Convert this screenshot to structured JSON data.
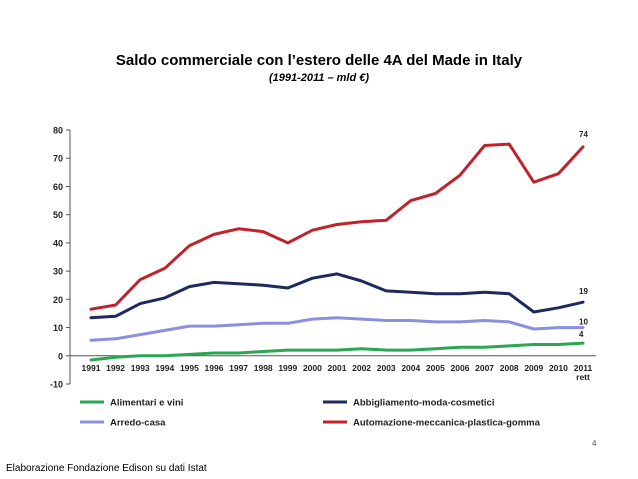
{
  "slide": {
    "title": "Saldo commerciale con l’estero delle 4A del Made in Italy",
    "subtitle": "(1991-2011 – mld €)",
    "source": "Elaborazione Fondazione Edison su dati Istat",
    "page_number": "4"
  },
  "chart_data": {
    "type": "line",
    "title": "",
    "xlabel": "",
    "ylabel": "",
    "ylim": [
      -10,
      80
    ],
    "yticks": [
      -10,
      0,
      10,
      20,
      30,
      40,
      50,
      60,
      70,
      80
    ],
    "grid": false,
    "legend": "bottom",
    "x": [
      "1991",
      "1992",
      "1993",
      "1994",
      "1995",
      "1996",
      "1997",
      "1998",
      "1999",
      "2000",
      "2001",
      "2002",
      "2003",
      "2004",
      "2005",
      "2006",
      "2007",
      "2008",
      "2009",
      "2010",
      "2011"
    ],
    "x_sublabel_last": "rett",
    "series": [
      {
        "name": "Automazione-meccanica-plastica-gomma",
        "color": "#c0232c",
        "values": [
          16.5,
          18,
          27,
          31,
          39,
          43,
          45,
          44,
          40,
          44.5,
          46.5,
          47.5,
          48,
          55,
          57.5,
          64,
          74.5,
          75,
          61.5,
          64.5,
          74
        ],
        "end_label": "74"
      },
      {
        "name": "Abbigliamento-moda-cosmetici",
        "color": "#1f2a5c",
        "values": [
          13.5,
          14,
          18.5,
          20.5,
          24.5,
          26,
          25.5,
          25,
          24,
          27.5,
          29,
          26.5,
          23,
          22.5,
          22,
          22,
          22.5,
          22,
          15.5,
          17,
          19
        ],
        "end_label": "19"
      },
      {
        "name": "Arredo-casa",
        "color": "#8b8fe0",
        "values": [
          5.5,
          6,
          7.5,
          9,
          10.5,
          10.5,
          11,
          11.5,
          11.5,
          13,
          13.5,
          13,
          12.5,
          12.5,
          12,
          12,
          12.5,
          12,
          9.5,
          10,
          10
        ],
        "end_label": "10"
      },
      {
        "name": "Alimentari e vini",
        "color": "#2aa655",
        "values": [
          -1.5,
          -0.5,
          0,
          0,
          0.5,
          1,
          1,
          1.5,
          2,
          2,
          2,
          2.5,
          2,
          2,
          2.5,
          3,
          3,
          3.5,
          4,
          4,
          4.5
        ],
        "end_label": "4"
      }
    ],
    "legend_order": [
      "Alimentari e vini",
      "Abbigliamento-moda-cosmetici",
      "Arredo-casa",
      "Automazione-meccanica-plastica-gomma"
    ]
  }
}
